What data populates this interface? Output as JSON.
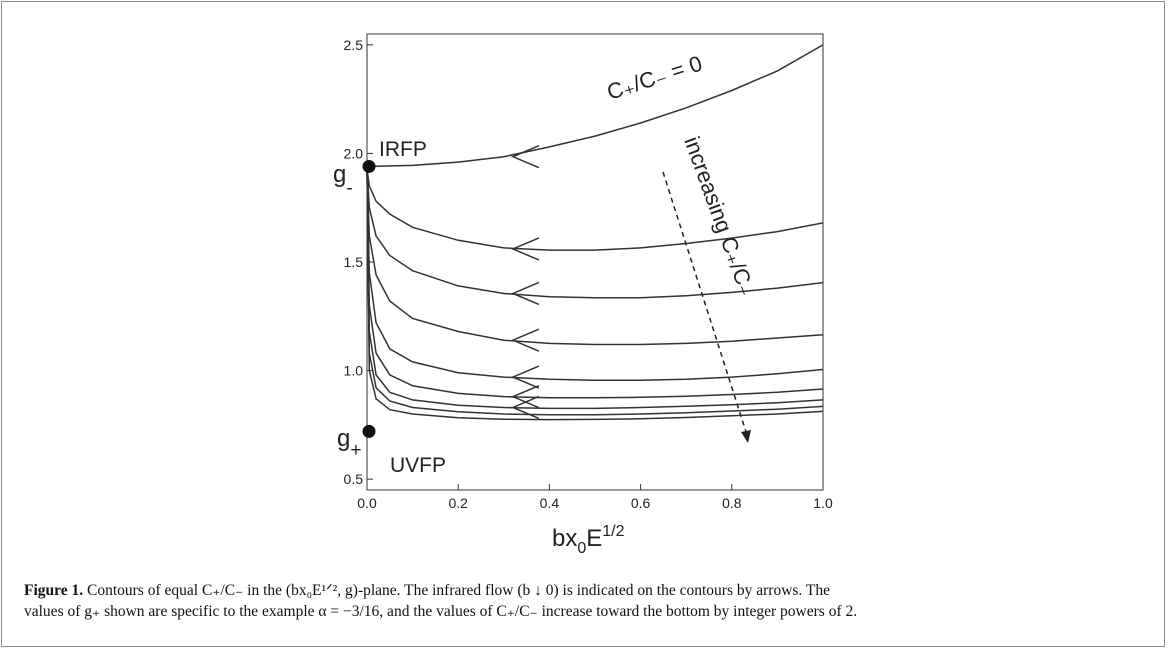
{
  "chart_data": {
    "type": "line",
    "xlabel_base": "bx",
    "xlabel_sub": "0",
    "xlabel_main": "E",
    "xlabel_sup": "1/2",
    "xlim": [
      0,
      1.0
    ],
    "ylim": [
      0.45,
      2.55
    ],
    "x_ticks": [
      "0.0",
      "0.2",
      "0.4",
      "0.6",
      "0.8",
      "1.0"
    ],
    "x_tick_values": [
      0,
      0.2,
      0.4,
      0.6,
      0.8,
      1.0
    ],
    "y_ticks": [
      "0.5",
      "1.0",
      "1.5",
      "2.0",
      "2.5"
    ],
    "y_tick_values": [
      0.5,
      1.0,
      1.5,
      2.0,
      2.5
    ],
    "grid": false,
    "points": {
      "irfp": {
        "label": "IRFP",
        "x": 0,
        "y": 1.94
      },
      "uvfp": {
        "label": "UVFP",
        "x": 0,
        "y": 0.72
      }
    },
    "g_minus_label": {
      "base": "g",
      "sub": "-"
    },
    "g_plus_label": {
      "base": "g",
      "sub": "+"
    },
    "contour_label": "C₊/C₋ = 0",
    "annotation_text": "increasing C₊/C₋",
    "series": [
      {
        "x": [
          0,
          0.1,
          0.2,
          0.3,
          0.4,
          0.5,
          0.6,
          0.7,
          0.8,
          0.9,
          1.0
        ],
        "y": [
          1.94,
          1.945,
          1.96,
          1.985,
          2.03,
          2.08,
          2.14,
          2.21,
          2.29,
          2.38,
          2.5
        ]
      },
      {
        "x": [
          0,
          0.005,
          0.02,
          0.05,
          0.1,
          0.2,
          0.3,
          0.4,
          0.5,
          0.6,
          0.7,
          0.8,
          0.9,
          1.0
        ],
        "y": [
          1.93,
          1.85,
          1.78,
          1.72,
          1.66,
          1.6,
          1.565,
          1.555,
          1.555,
          1.565,
          1.585,
          1.61,
          1.64,
          1.68
        ]
      },
      {
        "x": [
          0,
          0.005,
          0.02,
          0.05,
          0.1,
          0.2,
          0.3,
          0.4,
          0.5,
          0.6,
          0.7,
          0.8,
          0.9,
          1.0
        ],
        "y": [
          1.93,
          1.75,
          1.62,
          1.53,
          1.46,
          1.39,
          1.355,
          1.34,
          1.335,
          1.335,
          1.345,
          1.36,
          1.38,
          1.405
        ]
      },
      {
        "x": [
          0,
          0.005,
          0.02,
          0.05,
          0.1,
          0.2,
          0.3,
          0.4,
          0.5,
          0.6,
          0.7,
          0.8,
          0.9,
          1.0
        ],
        "y": [
          1.93,
          1.62,
          1.44,
          1.32,
          1.24,
          1.18,
          1.14,
          1.125,
          1.12,
          1.12,
          1.125,
          1.135,
          1.15,
          1.165
        ]
      },
      {
        "x": [
          0,
          0.005,
          0.02,
          0.05,
          0.1,
          0.2,
          0.3,
          0.4,
          0.5,
          0.6,
          0.7,
          0.8,
          0.9,
          1.0
        ],
        "y": [
          1.93,
          1.45,
          1.22,
          1.1,
          1.04,
          0.99,
          0.97,
          0.96,
          0.955,
          0.955,
          0.96,
          0.97,
          0.985,
          1.005
        ]
      },
      {
        "x": [
          0,
          0.005,
          0.02,
          0.05,
          0.1,
          0.2,
          0.3,
          0.4,
          0.5,
          0.6,
          0.7,
          0.8,
          0.9,
          1.0
        ],
        "y": [
          1.93,
          1.3,
          1.08,
          0.98,
          0.93,
          0.895,
          0.88,
          0.875,
          0.875,
          0.877,
          0.882,
          0.89,
          0.9,
          0.915
        ]
      },
      {
        "x": [
          0,
          0.005,
          0.02,
          0.05,
          0.1,
          0.2,
          0.3,
          0.4,
          0.5,
          0.6,
          0.7,
          0.8,
          0.9,
          1.0
        ],
        "y": [
          1.93,
          1.18,
          0.98,
          0.9,
          0.865,
          0.84,
          0.83,
          0.826,
          0.826,
          0.83,
          0.836,
          0.843,
          0.852,
          0.865
        ]
      },
      {
        "x": [
          0,
          0.005,
          0.02,
          0.05,
          0.1,
          0.2,
          0.3,
          0.4,
          0.5,
          0.6,
          0.7,
          0.8,
          0.9,
          1.0
        ],
        "y": [
          1.93,
          1.08,
          0.92,
          0.86,
          0.83,
          0.81,
          0.8,
          0.797,
          0.797,
          0.8,
          0.806,
          0.814,
          0.822,
          0.835
        ]
      },
      {
        "x": [
          0,
          0.005,
          0.02,
          0.05,
          0.1,
          0.2,
          0.3,
          0.4,
          0.5,
          0.6,
          0.7,
          0.8,
          0.9,
          1.0
        ],
        "y": [
          1.93,
          1.0,
          0.87,
          0.82,
          0.8,
          0.783,
          0.776,
          0.774,
          0.775,
          0.778,
          0.784,
          0.792,
          0.8,
          0.812
        ]
      }
    ],
    "arrows": [
      {
        "x": 0.32,
        "y": 1.985
      },
      {
        "x": 0.32,
        "y": 1.56
      },
      {
        "x": 0.32,
        "y": 1.355
      },
      {
        "x": 0.32,
        "y": 1.14
      },
      {
        "x": 0.32,
        "y": 0.97
      },
      {
        "x": 0.32,
        "y": 0.88
      },
      {
        "x": 0.32,
        "y": 0.83
      }
    ]
  },
  "caption": {
    "label": "Figure 1.",
    "line1": " Contours of equal C₊/C₋ in the (bx₀E¹ᐟ², g)-plane. The infrared flow (b ↓ 0) is indicated on the contours by arrows. The",
    "line2": "values of g₊ shown are specific to the example α = −3/16, and the values of C₊/C₋ increase toward the bottom by integer powers of 2."
  }
}
